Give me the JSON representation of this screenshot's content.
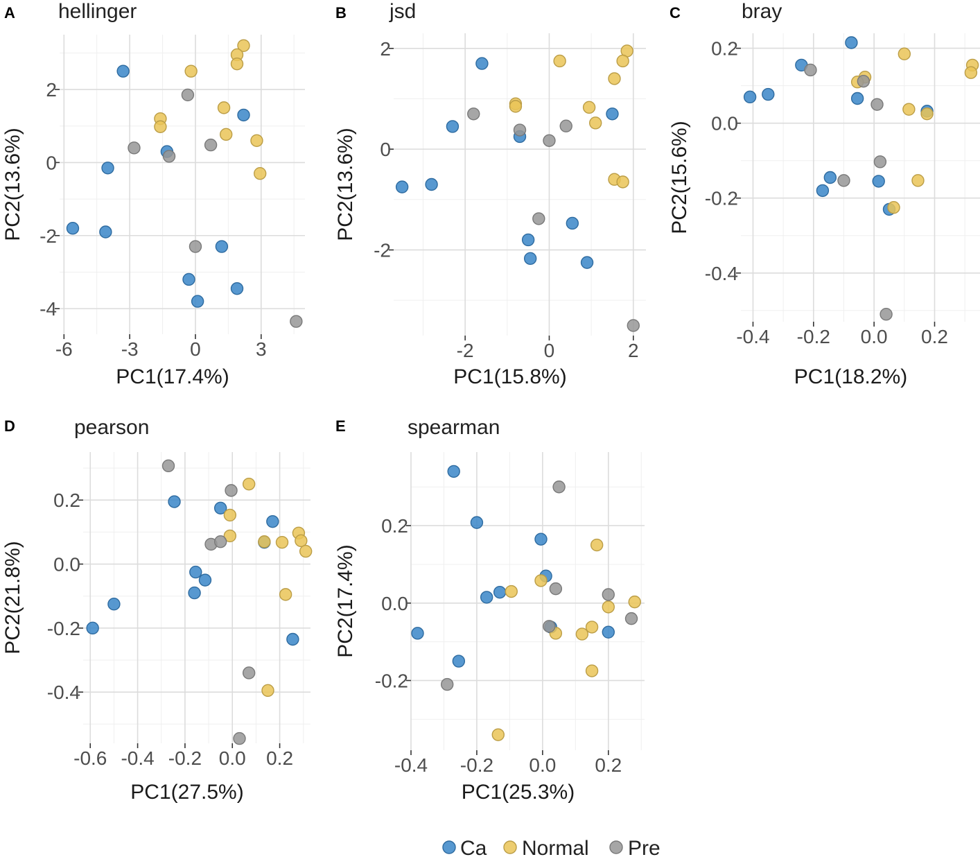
{
  "groups": [
    {
      "name": "Ca",
      "color": "#3A86C8"
    },
    {
      "name": "Normal",
      "color": "#EAC457"
    },
    {
      "name": "Pre",
      "color": "#979797"
    }
  ],
  "legend": {
    "items": [
      "Ca",
      "Normal",
      "Pre"
    ]
  },
  "chart_data": [
    {
      "type": "scatter",
      "letter": "A",
      "title": "hellinger",
      "xlabel": "PC1(17.4%)",
      "ylabel": "PC2(13.6%)",
      "xlim": [
        -6.2,
        5.0
      ],
      "ylim": [
        -4.7,
        3.5
      ],
      "xticks": [
        -6,
        -3,
        0,
        3
      ],
      "xtick_labels": [
        "-6",
        "-3",
        "0",
        "3"
      ],
      "yticks": [
        -4,
        -2,
        0,
        2
      ],
      "ytick_labels": [
        "-4",
        "-2",
        "0",
        "2"
      ],
      "series": [
        {
          "name": "Ca",
          "points": [
            [
              -3.3,
              2.5
            ],
            [
              -4.0,
              -0.15
            ],
            [
              -5.6,
              -1.8
            ],
            [
              -4.1,
              -1.9
            ],
            [
              -1.3,
              0.3
            ],
            [
              2.2,
              1.3
            ],
            [
              1.2,
              -2.3
            ],
            [
              -0.3,
              -3.2
            ],
            [
              0.1,
              -3.8
            ],
            [
              1.9,
              -3.45
            ]
          ]
        },
        {
          "name": "Normal",
          "points": [
            [
              2.2,
              3.2
            ],
            [
              1.9,
              2.95
            ],
            [
              1.9,
              2.7
            ],
            [
              -0.2,
              2.5
            ],
            [
              -1.6,
              1.2
            ],
            [
              -1.6,
              0.98
            ],
            [
              1.3,
              1.5
            ],
            [
              1.4,
              0.77
            ],
            [
              2.8,
              0.6
            ],
            [
              2.95,
              -0.3
            ]
          ]
        },
        {
          "name": "Pre",
          "points": [
            [
              -0.35,
              1.85
            ],
            [
              -2.8,
              0.4
            ],
            [
              -1.2,
              0.17
            ],
            [
              0.7,
              0.48
            ],
            [
              0.0,
              -2.3
            ],
            [
              4.6,
              -4.35
            ]
          ]
        }
      ]
    },
    {
      "type": "scatter",
      "letter": "B",
      "title": "jsd",
      "xlabel": "PC1(15.8%)",
      "ylabel": "PC2(13.6%)",
      "xlim": [
        -3.7,
        2.3
      ],
      "ylim": [
        -3.7,
        2.3
      ],
      "xticks": [
        -2,
        0,
        2
      ],
      "xtick_labels": [
        "-2",
        "0",
        "2"
      ],
      "yticks": [
        -2,
        0,
        2
      ],
      "ytick_labels": [
        "-2",
        "0",
        "2"
      ],
      "series": [
        {
          "name": "Ca",
          "points": [
            [
              -1.6,
              1.7
            ],
            [
              -2.3,
              0.45
            ],
            [
              -0.7,
              0.25
            ],
            [
              -3.5,
              -0.75
            ],
            [
              -2.8,
              -0.7
            ],
            [
              -0.5,
              -1.8
            ],
            [
              -0.45,
              -2.17
            ],
            [
              0.55,
              -1.47
            ],
            [
              0.9,
              -2.25
            ],
            [
              1.5,
              0.7
            ]
          ]
        },
        {
          "name": "Normal",
          "points": [
            [
              0.25,
              1.75
            ],
            [
              1.85,
              1.95
            ],
            [
              1.75,
              1.75
            ],
            [
              1.55,
              1.4
            ],
            [
              -0.8,
              0.9
            ],
            [
              -0.8,
              0.85
            ],
            [
              0.95,
              0.83
            ],
            [
              1.1,
              0.52
            ],
            [
              1.55,
              -0.6
            ],
            [
              1.75,
              -0.65
            ]
          ]
        },
        {
          "name": "Pre",
          "points": [
            [
              -1.8,
              0.7
            ],
            [
              -0.7,
              0.38
            ],
            [
              0.4,
              0.46
            ],
            [
              0.0,
              0.17
            ],
            [
              -0.25,
              -1.38
            ],
            [
              2.0,
              -3.5
            ]
          ]
        }
      ]
    },
    {
      "type": "scatter",
      "letter": "C",
      "title": "bray",
      "xlabel": "PC1(18.2%)",
      "ylabel": "PC2(15.6%)",
      "xlim": [
        -0.44,
        0.35
      ],
      "ylim": [
        -0.53,
        0.24
      ],
      "xticks": [
        -0.4,
        -0.2,
        0.0,
        0.2
      ],
      "xtick_labels": [
        "-0.4",
        "-0.2",
        "0.0",
        "0.2"
      ],
      "yticks": [
        -0.4,
        -0.2,
        0.0,
        0.2
      ],
      "ytick_labels": [
        "-0.4",
        "-0.2",
        "0.0",
        "0.2"
      ],
      "series": [
        {
          "name": "Ca",
          "points": [
            [
              -0.075,
              0.215
            ],
            [
              -0.24,
              0.155
            ],
            [
              -0.41,
              0.07
            ],
            [
              -0.35,
              0.077
            ],
            [
              -0.055,
              0.066
            ],
            [
              0.175,
              0.032
            ],
            [
              -0.145,
              -0.145
            ],
            [
              -0.17,
              -0.18
            ],
            [
              0.015,
              -0.155
            ],
            [
              0.05,
              -0.23
            ]
          ]
        },
        {
          "name": "Normal",
          "points": [
            [
              0.1,
              0.185
            ],
            [
              0.325,
              0.155
            ],
            [
              0.32,
              0.135
            ],
            [
              -0.03,
              0.123
            ],
            [
              -0.055,
              0.11
            ],
            [
              0.115,
              0.037
            ],
            [
              0.175,
              0.025
            ],
            [
              0.145,
              -0.153
            ],
            [
              0.065,
              -0.225
            ]
          ]
        },
        {
          "name": "Pre",
          "points": [
            [
              -0.21,
              0.142
            ],
            [
              -0.035,
              0.112
            ],
            [
              0.01,
              0.05
            ],
            [
              0.02,
              -0.103
            ],
            [
              -0.1,
              -0.153
            ],
            [
              0.04,
              -0.51
            ]
          ]
        }
      ]
    },
    {
      "type": "scatter",
      "letter": "D",
      "title": "pearson",
      "xlabel": "PC1(27.5%)",
      "ylabel": "PC2(21.8%)",
      "xlim": [
        -0.63,
        0.33
      ],
      "ylim": [
        -0.56,
        0.35
      ],
      "xticks": [
        -0.6,
        -0.4,
        -0.2,
        0.0,
        0.2
      ],
      "xtick_labels": [
        "-0.6",
        "-0.4",
        "-0.2",
        "0.0",
        "0.2"
      ],
      "yticks": [
        -0.4,
        -0.2,
        0.0,
        0.2
      ],
      "ytick_labels": [
        "-0.4",
        "-0.2",
        "0.0",
        "0.2"
      ],
      "series": [
        {
          "name": "Ca",
          "points": [
            [
              -0.245,
              0.195
            ],
            [
              -0.05,
              0.175
            ],
            [
              0.17,
              0.133
            ],
            [
              -0.155,
              -0.025
            ],
            [
              -0.115,
              -0.05
            ],
            [
              -0.16,
              -0.09
            ],
            [
              -0.5,
              -0.125
            ],
            [
              -0.59,
              -0.2
            ],
            [
              0.255,
              -0.235
            ],
            [
              0.135,
              0.068
            ]
          ]
        },
        {
          "name": "Normal",
          "points": [
            [
              0.07,
              0.25
            ],
            [
              -0.01,
              0.153
            ],
            [
              -0.01,
              0.088
            ],
            [
              0.135,
              0.07
            ],
            [
              0.21,
              0.068
            ],
            [
              0.28,
              0.097
            ],
            [
              0.29,
              0.073
            ],
            [
              0.31,
              0.04
            ],
            [
              0.225,
              -0.095
            ],
            [
              0.15,
              -0.395
            ]
          ]
        },
        {
          "name": "Pre",
          "points": [
            [
              -0.27,
              0.307
            ],
            [
              -0.005,
              0.23
            ],
            [
              -0.09,
              0.062
            ],
            [
              -0.05,
              0.07
            ],
            [
              0.07,
              -0.34
            ],
            [
              0.03,
              -0.545
            ]
          ]
        }
      ]
    },
    {
      "type": "scatter",
      "letter": "E",
      "title": "spearman",
      "xlabel": "PC1(25.3%)",
      "ylabel": "PC2(17.4%)",
      "xlim": [
        -0.4,
        0.31
      ],
      "ylim": [
        -0.38,
        0.39
      ],
      "xticks": [
        -0.4,
        -0.2,
        0.0,
        0.2
      ],
      "xtick_labels": [
        "-0.4",
        "-0.2",
        "0.0",
        "0.2"
      ],
      "yticks": [
        -0.2,
        0.0,
        0.2
      ],
      "ytick_labels": [
        "-0.2",
        "0.0",
        "0.2"
      ],
      "series": [
        {
          "name": "Ca",
          "points": [
            [
              -0.27,
              0.34
            ],
            [
              -0.2,
              0.208
            ],
            [
              -0.005,
              0.165
            ],
            [
              0.01,
              0.07
            ],
            [
              -0.13,
              0.028
            ],
            [
              -0.17,
              0.015
            ],
            [
              -0.38,
              -0.078
            ],
            [
              -0.255,
              -0.15
            ],
            [
              0.025,
              -0.062
            ],
            [
              0.2,
              -0.075
            ]
          ]
        },
        {
          "name": "Normal",
          "points": [
            [
              0.165,
              0.15
            ],
            [
              -0.005,
              0.058
            ],
            [
              -0.095,
              0.03
            ],
            [
              0.28,
              0.003
            ],
            [
              0.2,
              -0.01
            ],
            [
              0.04,
              -0.078
            ],
            [
              0.15,
              -0.062
            ],
            [
              0.12,
              -0.08
            ],
            [
              0.15,
              -0.175
            ],
            [
              -0.135,
              -0.34
            ]
          ]
        },
        {
          "name": "Pre",
          "points": [
            [
              0.05,
              0.3
            ],
            [
              0.04,
              0.037
            ],
            [
              0.2,
              0.022
            ],
            [
              0.27,
              -0.04
            ],
            [
              0.02,
              -0.06
            ],
            [
              -0.29,
              -0.21
            ]
          ]
        }
      ]
    }
  ]
}
